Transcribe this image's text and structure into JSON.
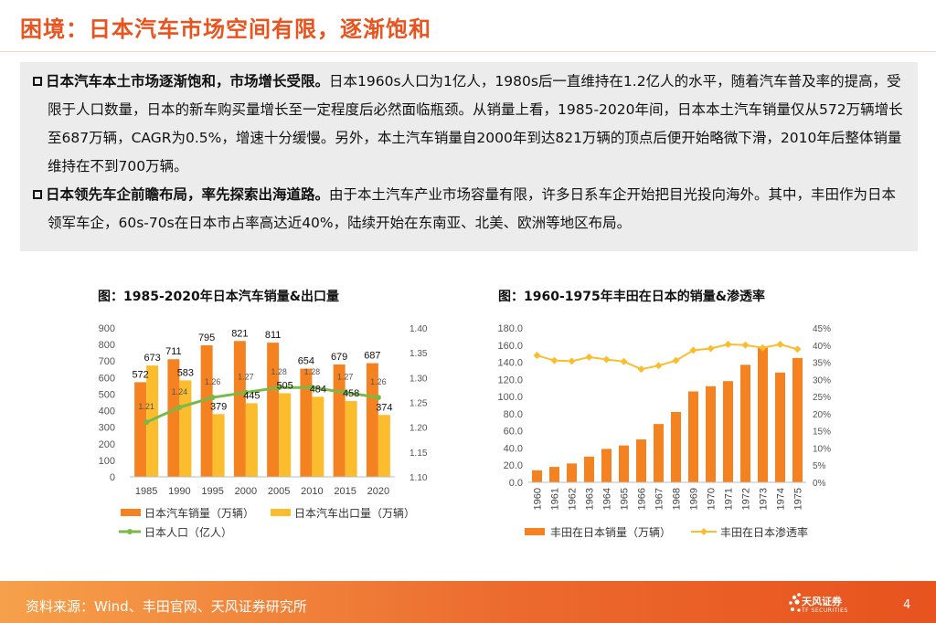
{
  "page": {
    "title": "困境：日本汽车市场空间有限，逐渐饱和",
    "page_number": "4"
  },
  "body": {
    "p1_bold": "日本汽车本土市场逐渐饱和，市场增长受限。",
    "p1_text": "日本1960s人口为1亿人，1980s后一直维持在1.2亿人的水平，随着汽车普及率的提高，受限于人口数量，日本的新车购买量增长至一定程度后必然面临瓶颈。从销量上看，1985-2020年间，日本本土汽车销量仅从572万辆增长至687万辆，CAGR为0.5%，增速十分缓慢。另外，本土汽车销量自2000年到达821万辆的顶点后便开始略微下滑，2010年后整体销量维持在不到700万辆。",
    "p2_bold": "日本领先车企前瞻布局，率先探索出海道路。",
    "p2_text": "由于本土汽车产业市场容量有限，许多日系车企开始把目光投向海外。其中，丰田作为日本领军车企，60s-70s在日本市占率高达近40%，陆续开始在东南亚、北美、欧洲等地区布局。"
  },
  "chart_data": [
    {
      "type": "bar",
      "title": "图：1985-2020年日本汽车销量&出口量",
      "categories": [
        "1985",
        "1990",
        "1995",
        "2000",
        "2005",
        "2010",
        "2015",
        "2020"
      ],
      "series": [
        {
          "name": "日本汽车销量（万辆）",
          "kind": "bar",
          "axis": "left",
          "values": [
            572,
            711,
            795,
            821,
            811,
            654,
            679,
            687
          ],
          "labels": [
            "572",
            "711",
            "795",
            "821",
            "811",
            "654",
            "679",
            "687"
          ]
        },
        {
          "name": "日本汽车出口量（万辆）",
          "kind": "bar",
          "axis": "left",
          "values": [
            673,
            583,
            379,
            445,
            505,
            484,
            458,
            374
          ],
          "labels": [
            "673",
            "583",
            "379",
            "445",
            "505",
            "484",
            "458",
            "374"
          ]
        },
        {
          "name": "日本人口（亿人）",
          "kind": "line",
          "axis": "right",
          "values": [
            1.21,
            1.24,
            1.26,
            1.27,
            1.28,
            1.28,
            1.27,
            1.26
          ],
          "labels": [
            "1.21",
            "1.24",
            "1.26",
            "1.27",
            "1.28",
            "1.28",
            "1.27",
            "1.26"
          ]
        }
      ],
      "ylim": [
        0,
        900
      ],
      "yticks": [
        "0",
        "100",
        "200",
        "300",
        "400",
        "500",
        "600",
        "700",
        "800",
        "900"
      ],
      "y2lim": [
        1.1,
        1.4
      ],
      "y2ticks": [
        "1.10",
        "1.15",
        "1.20",
        "1.25",
        "1.30",
        "1.35",
        "1.40"
      ],
      "legend": "bottom",
      "colors": {
        "sales": "#f58220",
        "export": "#fbbd2d",
        "population": "#79b94a"
      }
    },
    {
      "type": "bar",
      "title": "图：1960-1975年丰田在日本的销量&渗透率",
      "categories": [
        "1960",
        "1961",
        "1962",
        "1963",
        "1964",
        "1965",
        "1966",
        "1967",
        "1968",
        "1969",
        "1970",
        "1971",
        "1972",
        "1973",
        "1974",
        "1975"
      ],
      "series": [
        {
          "name": "丰田在日本销量（万辆）",
          "kind": "bar",
          "axis": "left",
          "values": [
            14,
            18,
            22,
            30,
            39,
            43,
            50,
            68,
            82,
            106,
            112,
            118,
            137,
            158,
            128,
            145
          ]
        },
        {
          "name": "丰田在日本渗透率",
          "kind": "line",
          "axis": "right",
          "values": [
            37,
            35.5,
            35.3,
            36.5,
            35.8,
            35.2,
            33,
            34,
            35.5,
            38.5,
            39,
            40.2,
            40,
            39.2,
            40.2,
            38.8
          ]
        }
      ],
      "ylim": [
        0,
        180
      ],
      "yticks": [
        "0.0",
        "20.0",
        "40.0",
        "60.0",
        "80.0",
        "100.0",
        "120.0",
        "140.0",
        "160.0",
        "180.0"
      ],
      "y2lim": [
        0,
        45
      ],
      "y2ticks": [
        "0%",
        "5%",
        "10%",
        "15%",
        "20%",
        "25%",
        "30%",
        "35%",
        "40%",
        "45%"
      ],
      "legend": "bottom",
      "colors": {
        "sales": "#f58220",
        "rate": "#fbbd2d"
      }
    }
  ],
  "footer": {
    "source": "资料来源：Wind、丰田官网、天风证券研究所",
    "logo_name": "天风证券",
    "logo_sub": "TF SECURITIES",
    "background": "#e8531e"
  }
}
